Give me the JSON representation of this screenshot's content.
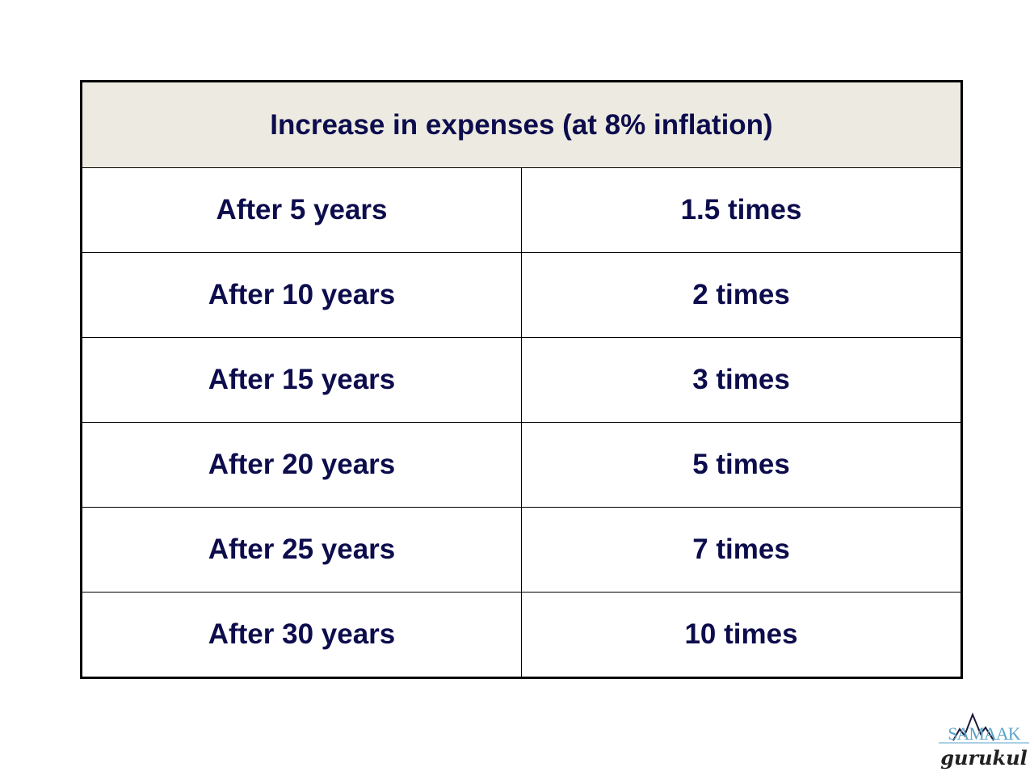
{
  "table": {
    "title": "Increase in expenses (at 8% inflation)",
    "rows": [
      {
        "period": "After 5 years",
        "multiple": "1.5 times"
      },
      {
        "period": "After 10 years",
        "multiple": "2 times"
      },
      {
        "period": "After 15 years",
        "multiple": "3 times"
      },
      {
        "period": "After 20 years",
        "multiple": "5 times"
      },
      {
        "period": "After 25 years",
        "multiple": "7 times"
      },
      {
        "period": "After 30 years",
        "multiple": "10 times"
      }
    ]
  },
  "logo": {
    "top_text": "SAMAAK",
    "bottom_text": "gurukul"
  },
  "colors": {
    "text": "#0d0d4d",
    "header_bg": "#edebe1",
    "border": "#000000",
    "logo_blue": "#5aa5c8"
  }
}
